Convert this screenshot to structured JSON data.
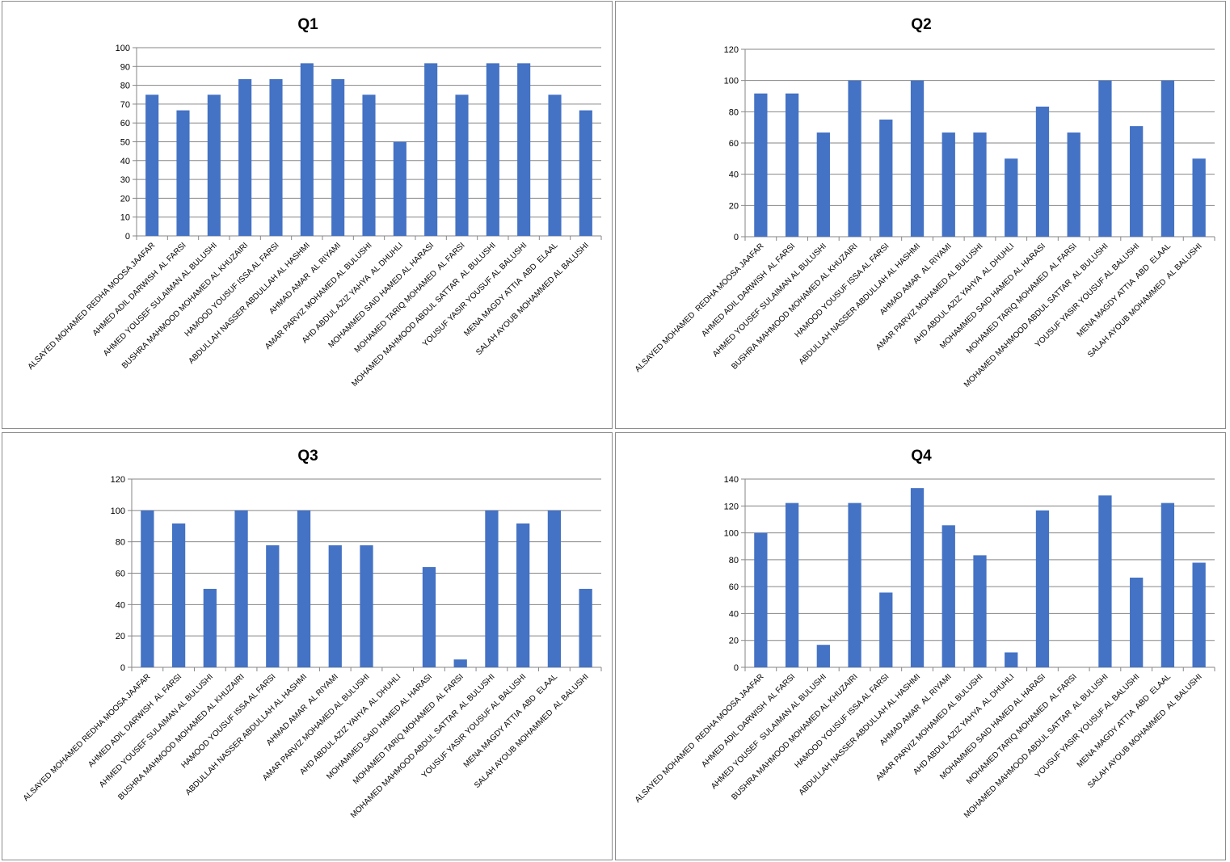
{
  "bar_color": "#4472C4",
  "gridline_color": "#868686",
  "chart_data": [
    {
      "type": "bar",
      "title": "Q1",
      "xlabel": "",
      "ylabel": "",
      "ylim": [
        0,
        100
      ],
      "ytick_step": 10,
      "grid": true,
      "legend": "none",
      "categories": [
        "ALSAYED MOHAMED REDHA MOOSA JAAFAR",
        "AHMED ADIL DARWISH  AL FARSI",
        "AHMED YOUSEF SULAIMAN AL BULUSHI",
        "BUSHRA MAHMOOD MOHAMED AL KHUZAIRI",
        "HAMOOD YOUSUF ISSA AL FARSI",
        "ABDULLAH NASSER ABDULLAH AL HASHMI",
        "AHMAD AMAR  AL RIYAMI",
        "AMAR PARVIZ MOHAMED AL BULUSHI",
        "AHD ABDUL AZIZ YAHYA  AL DHUHLI",
        "MOHAMMED SAID HAMED AL HARASI",
        "MOHAMED TARIQ MOHAMED  AL FARSI",
        "MOHAMED MAHMOOD ABDUL SATTAR  AL BULUSHI",
        "YOUSUF YASIR YOUSUF AL BALUSHI",
        "MENA MAGDY ATTIA  ABD  ELAAL",
        "SALAH AYOUB MOHAMMED AL BALUSHI"
      ],
      "values": [
        75,
        66.7,
        75,
        83.3,
        83.3,
        91.7,
        83.3,
        75,
        50,
        91.7,
        75,
        91.7,
        91.7,
        75,
        66.7
      ]
    },
    {
      "type": "bar",
      "title": "Q2",
      "xlabel": "",
      "ylabel": "",
      "ylim": [
        0,
        120
      ],
      "ytick_step": 20,
      "grid": true,
      "legend": "none",
      "categories": [
        "ALSAYED MOHAMED  REDHA MOOSA JAAFAR",
        "AHMED ADIL DARWISH  AL FARSI",
        "AHMED YOUSEF SULAIMAN AL BULUSHI",
        "BUSHRA MAHMOOD MOHAMED AL KHUZAIRI",
        "HAMOOD YOUSUF ISSA AL FARSI",
        "ABDULLAH NASSER ABDULLAH AL HASHMI",
        "AHMAD AMAR  AL RIYAMI",
        "AMAR PARVIZ MOHAMED AL BULUSHI",
        "AHD ABDUL AZIZ YAHYA  AL DHUHLI",
        "MOHAMMED SAID HAMED AL HARASI",
        "MOHAMED TARIQ MOHAMED  AL FARSI",
        "MOHAMED MAHMOOD ABDUL SATTAR  AL BULUSHI",
        "YOUSUF YASIR YOUSUF AL BALUSHI",
        "MENA MAGDY ATTIA  ABD  ELAAL",
        "SALAH AYOUB MOHAMMED  AL BALUSHI"
      ],
      "values": [
        91.7,
        91.7,
        66.7,
        100,
        75,
        100,
        66.7,
        66.7,
        50,
        83.3,
        66.7,
        100,
        70.8,
        100,
        50
      ]
    },
    {
      "type": "bar",
      "title": "Q3",
      "xlabel": "",
      "ylabel": "",
      "ylim": [
        0,
        120
      ],
      "ytick_step": 20,
      "grid": true,
      "legend": "none",
      "categories": [
        "ALSAYED MOHAMED REDHA MOOSA JAAFAR",
        "AHMED ADIL DARWISH  AL FARSI",
        "AHMED YOUSEF SULAIMAN AL BULUSHI",
        "BUSHRA MAHMOOD MOHAMED AL KHUZAIRI",
        "HAMOOD YOUSUF ISSA AL FARSI",
        "ABDULLAH NASSER ABDULLAH AL HASHMI",
        "AHMAD AMAR  AL RIYAMI",
        "AMAR PARVIZ MOHAMED AL BULUSHI",
        "AHD ABDUL AZIZ YAHYA  AL DHUHLI",
        "MOHAMMED SAID HAMED AL HARASI",
        "MOHAMED TARIQ MOHAMED  AL FARSI",
        "MOHAMED MAHMOOD ABDUL SATTAR  AL BULUSHI",
        "YOUSUF YASIR YOUSUF AL BALUSHI",
        "MENA MAGDY ATTIA  ABD  ELAAL",
        "SALAH AYOUB MOHAMMED  AL BALUSHI"
      ],
      "values": [
        100,
        91.7,
        50,
        100,
        77.8,
        100,
        77.8,
        77.8,
        0,
        63.9,
        5,
        100,
        91.7,
        100,
        50
      ]
    },
    {
      "type": "bar",
      "title": "Q4",
      "xlabel": "",
      "ylabel": "",
      "ylim": [
        0,
        140
      ],
      "ytick_step": 20,
      "grid": true,
      "legend": "none",
      "categories": [
        "ALSAYED MOHAMED  REDHA MOOSA JAAFAR",
        "AHMED ADIL DARWISH  AL FARSI",
        "AHMED YOUSEF  SULAIMAN AL BULUSHI",
        "BUSHRA MAHMOOD MOHAMED AL KHUZAIRI",
        "HAMOOD YOUSUF ISSA AL FARSI",
        "ABDULLAH NASSER ABDULLAH AL HASHMI",
        "AHMAD AMAR  AL RIYAMI",
        "AMAR PARVIZ MOHAMED AL BULUSHI",
        "AHD ABDUL AZIZ YAHYA  AL DHUHLI",
        "MOHAMMED SAID HAMED AL HARASI",
        "MOHAMED TARIQ MOHAMED  AL FARSI",
        "MOHAMED MAHMOOD ABDUL SATTAR  AL BULUSHI",
        "YOUSUF YASIR YOUSUF AL BALUSHI",
        "MENA MAGDY ATTIA  ABD  ELAAL",
        "SALAH AYOUB MOHAMMED  AL BALUSHI"
      ],
      "values": [
        100,
        122.2,
        16.7,
        122.2,
        55.6,
        133.3,
        105.6,
        83.3,
        11.1,
        116.7,
        0,
        127.8,
        66.7,
        122.2,
        77.8
      ]
    }
  ]
}
